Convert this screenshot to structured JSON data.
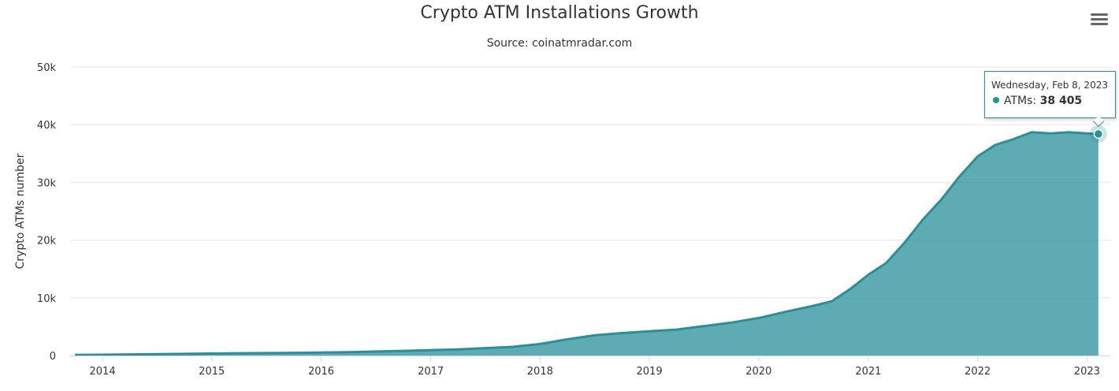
{
  "chart_data": {
    "type": "area",
    "title": "Crypto ATM Installations Growth",
    "subtitle": "Source: coinatmradar.com",
    "ylabel": "Crypto ATMs number",
    "xlabel": "",
    "ylim": [
      0,
      50000
    ],
    "y_ticks": [
      0,
      10000,
      20000,
      30000,
      40000,
      50000
    ],
    "y_tick_labels": [
      "0",
      "10k",
      "20k",
      "30k",
      "40k",
      "50k"
    ],
    "x_ticks": [
      "2014-01-01",
      "2015-01-01",
      "2016-01-01",
      "2017-01-01",
      "2018-01-01",
      "2019-01-01",
      "2020-01-01",
      "2021-01-01",
      "2022-01-01",
      "2023-01-01"
    ],
    "x_tick_labels": [
      "2014",
      "2015",
      "2016",
      "2017",
      "2018",
      "2019",
      "2020",
      "2021",
      "2022",
      "2023"
    ],
    "xlim": [
      "2013-09-15",
      "2023-03-20"
    ],
    "grid": true,
    "legend": "none",
    "series": [
      {
        "name": "ATMs",
        "color": "#2a8f99",
        "points": [
          [
            "2013-10-01",
            100
          ],
          [
            "2014-04-01",
            190
          ],
          [
            "2014-10-01",
            290
          ],
          [
            "2015-04-01",
            390
          ],
          [
            "2015-10-01",
            460
          ],
          [
            "2016-04-01",
            570
          ],
          [
            "2016-10-01",
            800
          ],
          [
            "2017-04-01",
            1050
          ],
          [
            "2017-10-01",
            1500
          ],
          [
            "2018-01-01",
            2000
          ],
          [
            "2018-04-01",
            2800
          ],
          [
            "2018-07-01",
            3500
          ],
          [
            "2018-10-01",
            3900
          ],
          [
            "2019-01-01",
            4200
          ],
          [
            "2019-04-01",
            4500
          ],
          [
            "2019-07-01",
            5100
          ],
          [
            "2019-10-01",
            5700
          ],
          [
            "2020-01-01",
            6500
          ],
          [
            "2020-04-01",
            7600
          ],
          [
            "2020-07-01",
            8600
          ],
          [
            "2020-09-01",
            9400
          ],
          [
            "2020-11-01",
            11500
          ],
          [
            "2021-01-01",
            14000
          ],
          [
            "2021-03-01",
            16000
          ],
          [
            "2021-05-01",
            19500
          ],
          [
            "2021-07-01",
            23500
          ],
          [
            "2021-09-01",
            27000
          ],
          [
            "2021-11-01",
            31000
          ],
          [
            "2022-01-01",
            34500
          ],
          [
            "2022-03-01",
            36500
          ],
          [
            "2022-05-01",
            37500
          ],
          [
            "2022-07-01",
            38700
          ],
          [
            "2022-09-01",
            38500
          ],
          [
            "2022-11-01",
            38700
          ],
          [
            "2023-01-01",
            38500
          ],
          [
            "2023-02-08",
            38405
          ]
        ]
      }
    ],
    "tooltip": {
      "date": "Wednesday, Feb 8, 2023",
      "series_label": "ATMs: ",
      "value": "38 405",
      "point": [
        "2023-02-08",
        38405
      ]
    }
  },
  "icons": {
    "menu": "hamburger-menu-icon"
  }
}
